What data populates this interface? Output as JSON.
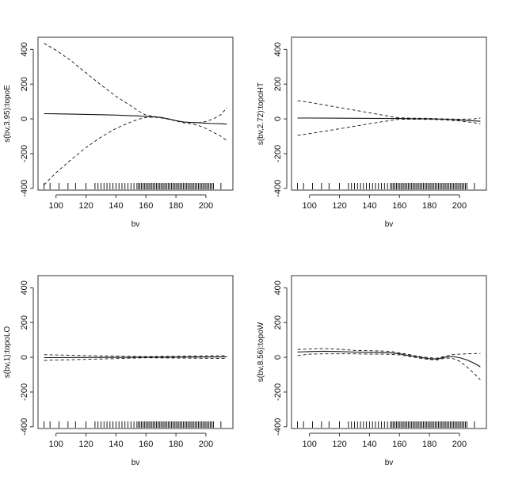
{
  "chart_data": [
    {
      "type": "line",
      "ylabel": "s(bv,3.95):topoE",
      "xlabel": "bv",
      "xlim": [
        88,
        218
      ],
      "ylim": [
        -410,
        470
      ],
      "xticks": [
        100,
        120,
        140,
        160,
        180,
        200
      ],
      "yticks": [
        -400,
        -200,
        0,
        200,
        400
      ],
      "series": [
        {
          "style": "solid",
          "x": [
            92,
            100,
            120,
            140,
            155,
            160,
            165,
            170,
            175,
            180,
            185,
            190,
            195,
            200,
            205,
            210,
            214
          ],
          "y": [
            30,
            29,
            26,
            22,
            17,
            14,
            12,
            8,
            0,
            -10,
            -18,
            -20,
            -22,
            -25,
            -27,
            -28,
            -30
          ]
        },
        {
          "style": "dashed",
          "x": [
            92,
            100,
            110,
            120,
            130,
            140,
            150,
            155,
            160,
            165,
            170,
            175,
            180,
            185,
            190,
            195,
            200,
            205,
            210,
            214
          ],
          "y": [
            435,
            395,
            335,
            265,
            195,
            130,
            75,
            45,
            22,
            14,
            8,
            0,
            -10,
            -18,
            -22,
            -22,
            -15,
            0,
            25,
            65
          ]
        },
        {
          "style": "dashed",
          "x": [
            92,
            100,
            110,
            120,
            130,
            140,
            150,
            155,
            160,
            165,
            170,
            175,
            180,
            185,
            190,
            195,
            200,
            205,
            210,
            214
          ],
          "y": [
            -380,
            -310,
            -235,
            -165,
            -105,
            -55,
            -18,
            -2,
            8,
            10,
            6,
            -2,
            -12,
            -22,
            -28,
            -38,
            -55,
            -78,
            -100,
            -125
          ]
        }
      ],
      "rug": [
        92,
        96,
        102,
        108,
        113,
        120,
        126,
        128,
        130,
        132,
        134,
        136,
        138,
        140,
        142,
        144,
        146,
        148,
        150,
        152,
        154,
        155,
        156,
        157,
        158,
        159,
        160,
        161,
        162,
        163,
        164,
        165,
        166,
        167,
        168,
        169,
        170,
        171,
        172,
        173,
        174,
        175,
        176,
        177,
        178,
        179,
        180,
        181,
        182,
        183,
        184,
        185,
        186,
        187,
        188,
        189,
        190,
        191,
        192,
        193,
        194,
        195,
        196,
        197,
        198,
        199,
        200,
        201,
        202,
        203,
        204,
        205,
        210
      ]
    },
    {
      "type": "line",
      "ylabel": "s(bv,2.72):topoHT",
      "xlabel": "bv",
      "xlim": [
        88,
        218
      ],
      "ylim": [
        -410,
        470
      ],
      "xticks": [
        100,
        120,
        140,
        160,
        180,
        200
      ],
      "yticks": [
        -400,
        -200,
        0,
        200,
        400
      ],
      "series": [
        {
          "style": "solid",
          "x": [
            92,
            100,
            120,
            140,
            160,
            170,
            180,
            190,
            200,
            210,
            214
          ],
          "y": [
            5,
            5,
            4,
            3,
            2,
            1,
            0,
            -2,
            -6,
            -12,
            -14
          ]
        },
        {
          "style": "dashed",
          "x": [
            92,
            100,
            120,
            140,
            155,
            160,
            170,
            180,
            190,
            200,
            210,
            214
          ],
          "y": [
            105,
            95,
            65,
            35,
            12,
            6,
            4,
            3,
            0,
            -2,
            0,
            5
          ]
        },
        {
          "style": "dashed",
          "x": [
            92,
            100,
            120,
            140,
            155,
            160,
            170,
            180,
            190,
            200,
            210,
            214
          ],
          "y": [
            -95,
            -85,
            -57,
            -28,
            -8,
            -2,
            -2,
            -3,
            -6,
            -12,
            -22,
            -28
          ]
        }
      ],
      "rug": [
        92,
        96,
        102,
        108,
        113,
        120,
        126,
        128,
        130,
        132,
        134,
        136,
        138,
        140,
        142,
        144,
        146,
        148,
        150,
        152,
        154,
        155,
        156,
        157,
        158,
        159,
        160,
        161,
        162,
        163,
        164,
        165,
        166,
        167,
        168,
        169,
        170,
        171,
        172,
        173,
        174,
        175,
        176,
        177,
        178,
        179,
        180,
        181,
        182,
        183,
        184,
        185,
        186,
        187,
        188,
        189,
        190,
        191,
        192,
        193,
        194,
        195,
        196,
        197,
        198,
        199,
        200,
        201,
        202,
        203,
        204,
        205,
        210
      ]
    },
    {
      "type": "line",
      "ylabel": "s(bv,1):topoLO",
      "xlabel": "bv",
      "xlim": [
        88,
        218
      ],
      "ylim": [
        -410,
        470
      ],
      "xticks": [
        100,
        120,
        140,
        160,
        180,
        200
      ],
      "yticks": [
        -400,
        -200,
        0,
        200,
        400
      ],
      "series": [
        {
          "style": "solid",
          "x": [
            92,
            214
          ],
          "y": [
            -2,
            2
          ]
        },
        {
          "style": "dashed",
          "x": [
            92,
            120,
            150,
            160,
            180,
            214
          ],
          "y": [
            15,
            10,
            5,
            4,
            6,
            10
          ]
        },
        {
          "style": "dashed",
          "x": [
            92,
            120,
            150,
            160,
            180,
            214
          ],
          "y": [
            -18,
            -12,
            -5,
            -3,
            -4,
            -7
          ]
        }
      ],
      "rug": [
        92,
        96,
        102,
        108,
        113,
        120,
        126,
        128,
        130,
        132,
        134,
        136,
        138,
        140,
        142,
        144,
        146,
        148,
        150,
        152,
        154,
        155,
        156,
        157,
        158,
        159,
        160,
        161,
        162,
        163,
        164,
        165,
        166,
        167,
        168,
        169,
        170,
        171,
        172,
        173,
        174,
        175,
        176,
        177,
        178,
        179,
        180,
        181,
        182,
        183,
        184,
        185,
        186,
        187,
        188,
        189,
        190,
        191,
        192,
        193,
        194,
        195,
        196,
        197,
        198,
        199,
        200,
        201,
        202,
        203,
        204,
        205,
        210
      ]
    },
    {
      "type": "line",
      "ylabel": "s(bv,8.56):topoW",
      "xlabel": "bv",
      "xlim": [
        88,
        218
      ],
      "ylim": [
        -410,
        470
      ],
      "xticks": [
        100,
        120,
        140,
        160,
        180,
        200
      ],
      "yticks": [
        -400,
        -200,
        0,
        200,
        400
      ],
      "series": [
        {
          "style": "solid",
          "x": [
            92,
            100,
            110,
            120,
            130,
            140,
            150,
            155,
            160,
            165,
            170,
            175,
            180,
            185,
            190,
            195,
            200,
            205,
            210,
            214
          ],
          "y": [
            30,
            33,
            35,
            33,
            30,
            28,
            27,
            25,
            20,
            12,
            5,
            -2,
            -8,
            -10,
            0,
            5,
            -2,
            -15,
            -35,
            -55
          ]
        },
        {
          "style": "dashed",
          "x": [
            92,
            100,
            110,
            120,
            130,
            140,
            150,
            155,
            160,
            165,
            170,
            175,
            180,
            185,
            190,
            195,
            200,
            205,
            210,
            214
          ],
          "y": [
            45,
            48,
            50,
            46,
            40,
            38,
            36,
            33,
            26,
            18,
            10,
            3,
            -3,
            -5,
            5,
            15,
            18,
            20,
            22,
            22
          ]
        },
        {
          "style": "dashed",
          "x": [
            92,
            100,
            110,
            120,
            130,
            140,
            150,
            155,
            160,
            165,
            170,
            175,
            180,
            185,
            190,
            195,
            200,
            205,
            210,
            214
          ],
          "y": [
            10,
            18,
            20,
            20,
            20,
            18,
            18,
            17,
            14,
            7,
            0,
            -7,
            -13,
            -15,
            -5,
            -5,
            -22,
            -55,
            -95,
            -130
          ]
        }
      ],
      "rug": [
        92,
        96,
        102,
        108,
        113,
        120,
        126,
        128,
        130,
        132,
        134,
        136,
        138,
        140,
        142,
        144,
        146,
        148,
        150,
        152,
        154,
        155,
        156,
        157,
        158,
        159,
        160,
        161,
        162,
        163,
        164,
        165,
        166,
        167,
        168,
        169,
        170,
        171,
        172,
        173,
        174,
        175,
        176,
        177,
        178,
        179,
        180,
        181,
        182,
        183,
        184,
        185,
        186,
        187,
        188,
        189,
        190,
        191,
        192,
        193,
        194,
        195,
        196,
        197,
        198,
        199,
        200,
        201,
        202,
        203,
        204,
        205,
        210
      ]
    }
  ]
}
